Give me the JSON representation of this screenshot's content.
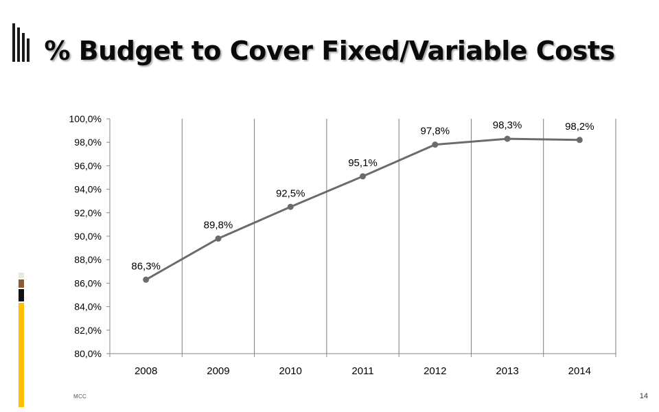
{
  "slide": {
    "title": "% Budget to Cover Fixed/Variable Costs",
    "footer": "MCC",
    "page_number": "14"
  },
  "colors": {
    "series_line": "#6b6b6b",
    "gridline": "#7a7a7a",
    "axis": "#868686",
    "bar_cream": "#ece8d6",
    "bar_brown": "#8c5a3a",
    "bar_black": "#111111",
    "bar_gold": "#ffc000"
  },
  "chart_data": {
    "type": "line",
    "title": "",
    "xlabel": "",
    "ylabel": "",
    "categories": [
      "2008",
      "2009",
      "2010",
      "2011",
      "2012",
      "2013",
      "2014"
    ],
    "series": [
      {
        "values": [
          86.3,
          89.8,
          92.5,
          95.1,
          97.8,
          98.3,
          98.2
        ],
        "data_labels": [
          "86,3%",
          "89,8%",
          "92,5%",
          "95,1%",
          "97,8%",
          "98,3%",
          "98,2%"
        ]
      }
    ],
    "ylim": [
      80,
      100
    ],
    "yticks": [
      80,
      82,
      84,
      86,
      88,
      90,
      92,
      94,
      96,
      98,
      100
    ],
    "ytick_labels": [
      "80,0%",
      "82,0%",
      "84,0%",
      "86,0%",
      "88,0%",
      "90,0%",
      "92,0%",
      "94,0%",
      "96,0%",
      "98,0%",
      "100,0%"
    ],
    "vertical_gridlines": true,
    "horizontal_gridlines": false,
    "legend": "none"
  }
}
